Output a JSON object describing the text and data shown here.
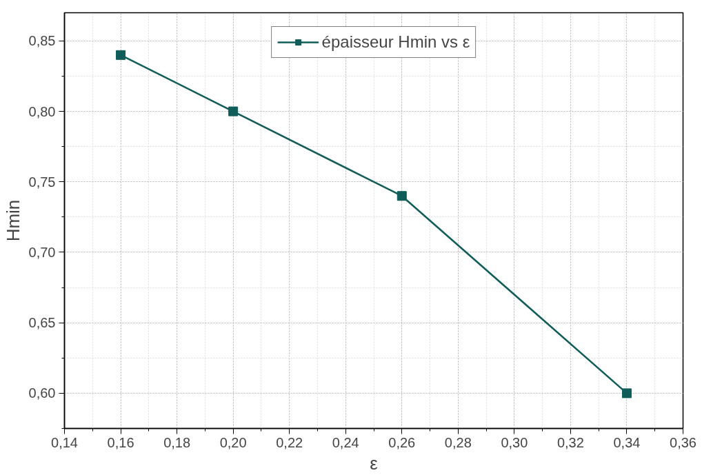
{
  "chart_data": {
    "type": "line",
    "xlabel": "ε",
    "ylabel": "Hmin",
    "x": [
      0.16,
      0.2,
      0.26,
      0.34
    ],
    "series": [
      {
        "name": "épaisseur Hmin vs ε",
        "color": "#0f5c58",
        "values": [
          0.84,
          0.8,
          0.74,
          0.6
        ]
      }
    ],
    "xlim": [
      0.14,
      0.36
    ],
    "ylim": [
      0.575,
      0.87
    ],
    "xticks": [
      {
        "value": 0.14,
        "label": "0,14"
      },
      {
        "value": 0.16,
        "label": "0,16"
      },
      {
        "value": 0.18,
        "label": "0,18"
      },
      {
        "value": 0.2,
        "label": "0,20"
      },
      {
        "value": 0.22,
        "label": "0,22"
      },
      {
        "value": 0.24,
        "label": "0,24"
      },
      {
        "value": 0.26,
        "label": "0,26"
      },
      {
        "value": 0.28,
        "label": "0,28"
      },
      {
        "value": 0.3,
        "label": "0,30"
      },
      {
        "value": 0.32,
        "label": "0,32"
      },
      {
        "value": 0.34,
        "label": "0,34"
      },
      {
        "value": 0.36,
        "label": "0,36"
      }
    ],
    "yticks": [
      {
        "value": 0.6,
        "label": "0,60"
      },
      {
        "value": 0.65,
        "label": "0,65"
      },
      {
        "value": 0.7,
        "label": "0,70"
      },
      {
        "value": 0.75,
        "label": "0,75"
      },
      {
        "value": 0.8,
        "label": "0,80"
      },
      {
        "value": 0.85,
        "label": "0,85"
      }
    ],
    "grid": true,
    "legend": "top",
    "marker": "square",
    "line_style": "solid"
  }
}
